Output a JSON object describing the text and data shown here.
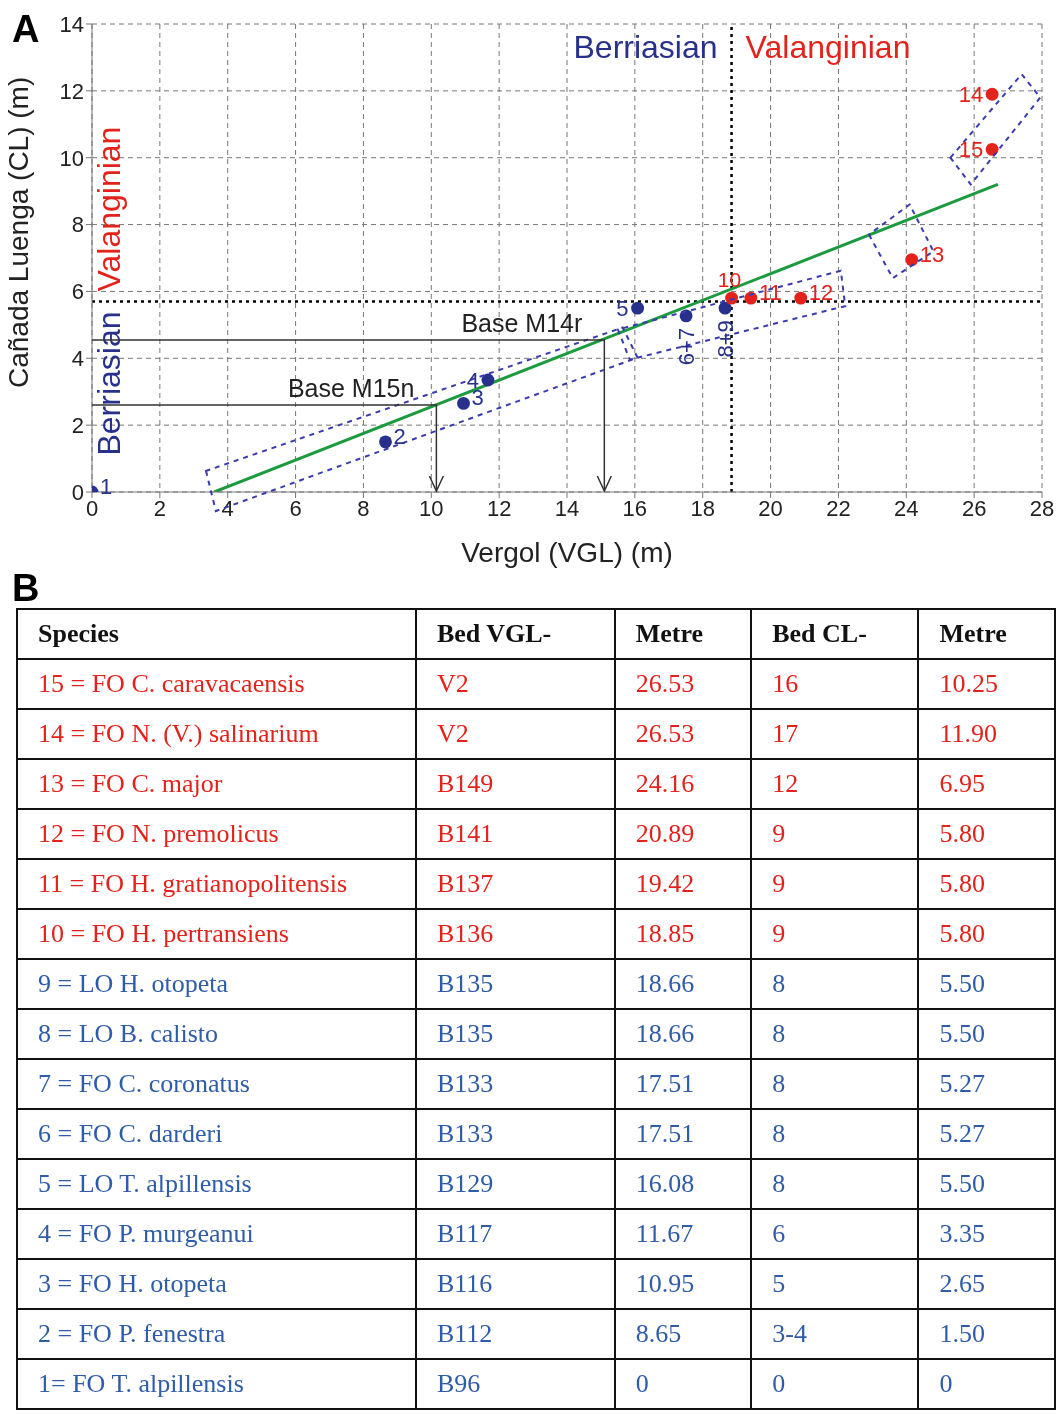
{
  "chart_data": [
    {
      "type": "scatter",
      "title": "A",
      "xlabel": "Vergol (VGL) (m)",
      "ylabel": "Cañada Luenga (CL) (m)",
      "xlim": [
        0,
        28
      ],
      "xticks": [
        0,
        2,
        4,
        6,
        8,
        10,
        12,
        14,
        16,
        18,
        20,
        22,
        24,
        26,
        28
      ],
      "ylim": [
        0,
        14
      ],
      "yticks": [
        0,
        2,
        4,
        6,
        8,
        10,
        12,
        14
      ],
      "grid": true,
      "series": [
        {
          "name": "Berriasian",
          "color": "#27318b",
          "marker": "circle",
          "x": [
            0,
            8.65,
            10.95,
            11.67,
            16.08,
            17.51,
            18.66
          ],
          "values": [
            0,
            1.5,
            2.65,
            3.35,
            5.5,
            5.27,
            5.5
          ]
        },
        {
          "name": "Valanginian",
          "color": "#e3231b",
          "marker": "circle",
          "x": [
            18.85,
            19.42,
            20.89,
            24.16,
            26.53,
            26.53
          ],
          "values": [
            5.8,
            5.8,
            5.8,
            6.95,
            11.9,
            10.25
          ]
        },
        {
          "type": "line",
          "color": "#1b9a3e",
          "x": [
            3.6,
            26.7
          ],
          "values": [
            0,
            9.2
          ]
        }
      ],
      "ref_lines": [
        {
          "axis": "x",
          "value": 18.85,
          "color": "#000000",
          "line_style": "dotted"
        },
        {
          "axis": "y",
          "value": 5.7,
          "color": "#000000",
          "line_style": "dotted"
        }
      ],
      "annotations": [
        {
          "text": "1",
          "x": 0,
          "y": 0
        },
        {
          "text": "2",
          "x": 8.65,
          "y": 1.5
        },
        {
          "text": "3",
          "x": 10.95,
          "y": 2.65
        },
        {
          "text": "4",
          "x": 11.67,
          "y": 3.35
        },
        {
          "text": "5",
          "x": 16.08,
          "y": 5.5
        },
        {
          "text": "6+7",
          "x": 17.51,
          "y": 5.27
        },
        {
          "text": "8+9",
          "x": 18.66,
          "y": 5.5
        },
        {
          "text": "10",
          "x": 18.85,
          "y": 5.8
        },
        {
          "text": "11",
          "x": 19.42,
          "y": 5.8
        },
        {
          "text": "12",
          "x": 20.89,
          "y": 5.8
        },
        {
          "text": "13",
          "x": 24.16,
          "y": 6.95
        },
        {
          "text": "14",
          "x": 26.53,
          "y": 11.9
        },
        {
          "text": "15",
          "x": 26.53,
          "y": 10.25
        },
        {
          "text": "Base M14r",
          "x": 15.1,
          "y": 4.55
        },
        {
          "text": "Base M15n",
          "x": 10.15,
          "y": 2.6
        }
      ]
    },
    {
      "type": "other",
      "title": "B",
      "colors": [
        "#e3231b",
        "#e3231b",
        "#e3231b",
        "#e3231b",
        "#e3231b",
        "#e3231b",
        "#2f5ca8",
        "#2f5ca8",
        "#2f5ca8",
        "#2f5ca8",
        "#2f5ca8",
        "#2f5ca8",
        "#2f5ca8",
        "#2f5ca8",
        "#2f5ca8"
      ],
      "annotations": [
        "Species",
        "Bed VGL-",
        "Metre",
        "Bed CL-",
        "Metre",
        "15 = FO C. caravacaensis",
        "V2",
        "26.53",
        "16",
        "10.25",
        "14 = FO N. (V.) salinarium",
        "V2",
        "26.53",
        "17",
        "11.90",
        "13 = FO C. major",
        "B149",
        "24.16",
        "12",
        "6.95",
        "12 = FO N. premolicus",
        "B141",
        "20.89",
        "9",
        "5.80",
        "11 = FO H. gratianopolitensis",
        "B137",
        "19.42",
        "9",
        "5.80",
        "10 = FO H. pertransiens",
        "B136",
        "18.85",
        "9",
        "5.80",
        "9 = LO H. otopeta",
        "B135",
        "18.66",
        "8",
        "5.50",
        "8 = LO B. calisto",
        "B135",
        "18.66",
        "8",
        "5.50",
        "7 = FO C. coronatus",
        "B133",
        "17.51",
        "8",
        "5.27",
        "6 = FO C. darderi",
        "B133",
        "17.51",
        "8",
        "5.27",
        "5 = LO T. alpillensis",
        "B129",
        "16.08",
        "8",
        "5.50",
        "4 = FO P. murgeanui",
        "B117",
        "11.67",
        "6",
        "3.35",
        "3 = FO H. otopeta",
        "B116",
        "10.95",
        "5",
        "2.65",
        "2 = FO P. fenestra",
        "B112",
        "8.65",
        "3-4",
        "1.50",
        "1= FO T. alpillensis",
        "B96",
        "0",
        "0",
        "0"
      ]
    }
  ]
}
